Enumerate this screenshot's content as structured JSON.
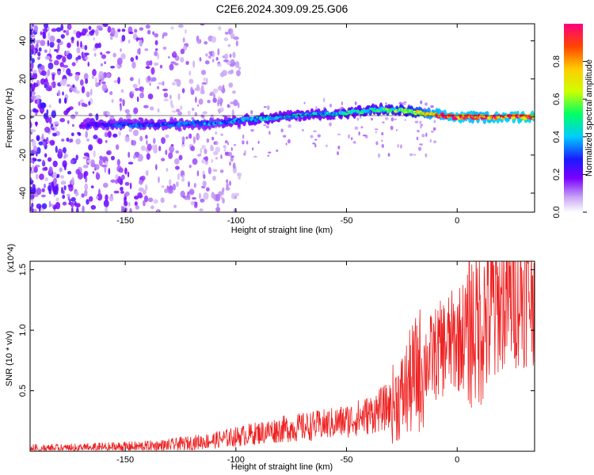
{
  "title": "C2E6.2024.309.09.25.G06",
  "chart_data": [
    {
      "type": "heatmap",
      "xlabel": "Height of straight line (km)",
      "ylabel": "Frequency (Hz)",
      "xlim": [
        -193,
        35
      ],
      "ylim": [
        -50,
        49
      ],
      "xticks": [
        -150,
        -100,
        -50,
        0
      ],
      "yticks": [
        -40,
        -20,
        0,
        20,
        40
      ],
      "colorbar": {
        "label": "Normalized spectral amplitude",
        "range": [
          0,
          1
        ],
        "ticks": [
          0.0,
          0.2,
          0.4,
          0.6,
          0.8
        ],
        "colormap": [
          "#ffffff",
          "#c7a4f4",
          "#7b00ff",
          "#1a1aff",
          "#00ccff",
          "#00ff66",
          "#ccff00",
          "#ffcc00",
          "#ff4400",
          "#ff0080"
        ]
      },
      "signal_track": {
        "heights_km": [
          -170,
          -150,
          -130,
          -110,
          -90,
          -70,
          -50,
          -35,
          -22,
          -10,
          0,
          10,
          35
        ],
        "frequency_hz": [
          -4,
          -4,
          -4,
          -3,
          -1,
          1,
          2,
          4,
          3,
          1,
          0,
          0,
          0
        ],
        "amplitude": [
          0.2,
          0.3,
          0.3,
          0.35,
          0.4,
          0.4,
          0.45,
          0.5,
          0.6,
          0.85,
          0.9,
          0.85,
          0.95
        ]
      }
    },
    {
      "type": "line",
      "xlabel": "Height of straight line (km)",
      "ylabel": "SNR (10 * v/v)",
      "y_multiplier": "(x10^4)",
      "xlim": [
        -193,
        35
      ],
      "ylim": [
        0,
        1.57
      ],
      "xticks": [
        -150,
        -100,
        -50,
        0
      ],
      "yticks": [
        0.5,
        1.0,
        1.5
      ],
      "series": [
        {
          "color": "#ee2222",
          "x": [
            -193,
            -180,
            -160,
            -140,
            -130,
            -120,
            -110,
            -100,
            -90,
            -80,
            -70,
            -60,
            -50,
            -40,
            -30,
            -25,
            -20,
            -15,
            -10,
            -5,
            0,
            5,
            10,
            15,
            20,
            25,
            30,
            35
          ],
          "y": [
            0.02,
            0.02,
            0.03,
            0.04,
            0.05,
            0.07,
            0.09,
            0.12,
            0.15,
            0.18,
            0.2,
            0.22,
            0.25,
            0.3,
            0.38,
            0.45,
            0.6,
            0.72,
            0.8,
            0.88,
            0.92,
            1.0,
            1.05,
            1.15,
            1.22,
            1.27,
            1.3,
            1.34
          ]
        }
      ]
    }
  ]
}
